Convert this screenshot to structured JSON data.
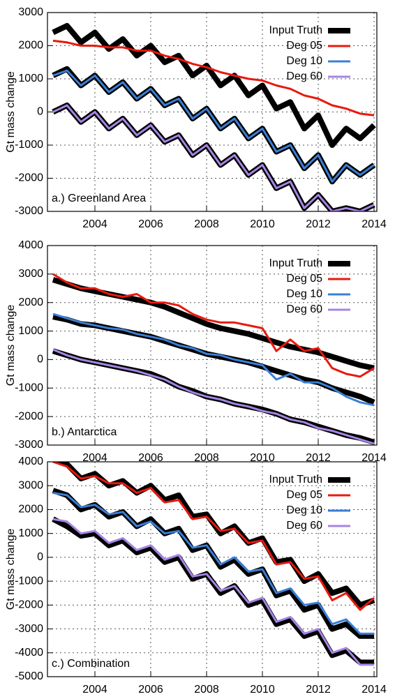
{
  "chart_data": [
    {
      "type": "line",
      "title": null,
      "annotation": "a.) Greenland Area",
      "ylabel": "Gt mass change",
      "legend": "top-right",
      "grid": true,
      "x": [
        2002.5,
        2003,
        2003.5,
        2004,
        2004.5,
        2005,
        2005.5,
        2006,
        2006.5,
        2007,
        2007.5,
        2008,
        2008.5,
        2009,
        2009.5,
        2010,
        2010.5,
        2011,
        2011.5,
        2012,
        2012.5,
        2013,
        2013.5,
        2014
      ],
      "xlim": [
        2002.3,
        2014.1
      ],
      "xticks": [
        2004,
        2006,
        2008,
        2010,
        2012,
        2014
      ],
      "ylim": [
        -3000,
        3000
      ],
      "yticks": [
        -3000,
        -2000,
        -1000,
        0,
        1000,
        2000,
        3000
      ],
      "series": [
        {
          "name": "Input Truth",
          "color": "#000000"
        },
        {
          "name": "Deg 05",
          "color": "#e8190e",
          "truth": [
            2400,
            2600,
            2100,
            2400,
            1900,
            2200,
            1700,
            2000,
            1500,
            1700,
            1100,
            1400,
            800,
            1100,
            500,
            800,
            100,
            300,
            -500,
            -100,
            -1000,
            -500,
            -800,
            -400
          ],
          "values": [
            2150,
            2100,
            2000,
            2000,
            1950,
            1950,
            1850,
            1850,
            1700,
            1600,
            1450,
            1350,
            1200,
            1100,
            1000,
            950,
            800,
            700,
            500,
            400,
            200,
            100,
            -50,
            -100
          ]
        },
        {
          "name": "Deg 10",
          "color": "#3a7fd5",
          "truth": [
            1100,
            1300,
            800,
            1100,
            600,
            900,
            400,
            700,
            200,
            400,
            -200,
            100,
            -500,
            -200,
            -800,
            -500,
            -1200,
            -1000,
            -1700,
            -1300,
            -2100,
            -1600,
            -1900,
            -1600
          ],
          "values": [
            1100,
            1250,
            800,
            1100,
            600,
            900,
            400,
            700,
            200,
            400,
            -200,
            100,
            -500,
            -200,
            -800,
            -500,
            -1200,
            -1000,
            -1700,
            -1300,
            -2100,
            -1600,
            -1900,
            -1600
          ]
        },
        {
          "name": "Deg 60",
          "color": "#a585e4",
          "truth": [
            0,
            200,
            -300,
            0,
            -500,
            -200,
            -700,
            -400,
            -900,
            -700,
            -1300,
            -1000,
            -1600,
            -1300,
            -1900,
            -1600,
            -2300,
            -2100,
            -2900,
            -2500,
            -3000,
            -2900,
            -3000,
            -2800
          ],
          "values": [
            0,
            200,
            -300,
            0,
            -500,
            -200,
            -700,
            -400,
            -900,
            -700,
            -1300,
            -1000,
            -1600,
            -1300,
            -1900,
            -1600,
            -2300,
            -2100,
            -2900,
            -2500,
            -3000,
            -2900,
            -3000,
            -2800
          ]
        }
      ]
    },
    {
      "type": "line",
      "title": null,
      "annotation": "b.) Antarctica",
      "ylabel": "Gt mass change",
      "legend": "top-right",
      "grid": true,
      "x": [
        2002.5,
        2003,
        2003.5,
        2004,
        2004.5,
        2005,
        2005.5,
        2006,
        2006.5,
        2007,
        2007.5,
        2008,
        2008.5,
        2009,
        2009.5,
        2010,
        2010.5,
        2011,
        2011.5,
        2012,
        2012.5,
        2013,
        2013.5,
        2014
      ],
      "xlim": [
        2002.3,
        2014.1
      ],
      "xticks": [
        2004,
        2006,
        2008,
        2010,
        2012,
        2014
      ],
      "ylim": [
        -3000,
        4000
      ],
      "yticks": [
        -3000,
        -2000,
        -1000,
        0,
        1000,
        2000,
        3000,
        4000
      ],
      "series": [
        {
          "name": "Input Truth",
          "color": "#000000"
        },
        {
          "name": "Deg 05",
          "color": "#e8190e",
          "truth": [
            2800,
            2650,
            2500,
            2400,
            2300,
            2200,
            2100,
            2000,
            1850,
            1650,
            1450,
            1250,
            1100,
            1000,
            900,
            750,
            600,
            450,
            350,
            250,
            100,
            -50,
            -200,
            -300
          ],
          "values": [
            3000,
            2700,
            2500,
            2500,
            2300,
            2200,
            2300,
            2000,
            2000,
            1900,
            1600,
            1400,
            1300,
            1300,
            1200,
            1100,
            300,
            700,
            300,
            400,
            -300,
            -500,
            -600,
            -300
          ]
        },
        {
          "name": "Deg 10",
          "color": "#3a7fd5",
          "truth": [
            1500,
            1400,
            1250,
            1200,
            1100,
            1000,
            900,
            800,
            650,
            500,
            350,
            200,
            100,
            0,
            -100,
            -250,
            -400,
            -550,
            -700,
            -800,
            -1000,
            -1150,
            -1300,
            -1500
          ],
          "values": [
            1600,
            1450,
            1300,
            1200,
            1100,
            1050,
            900,
            800,
            700,
            500,
            400,
            200,
            150,
            0,
            -100,
            -200,
            -700,
            -500,
            -800,
            -800,
            -1000,
            -1300,
            -1500,
            -1600
          ]
        },
        {
          "name": "Deg 60",
          "color": "#a585e4",
          "truth": [
            300,
            150,
            0,
            -100,
            -200,
            -300,
            -400,
            -500,
            -700,
            -950,
            -1100,
            -1300,
            -1400,
            -1550,
            -1650,
            -1750,
            -1900,
            -2100,
            -2200,
            -2350,
            -2500,
            -2650,
            -2750,
            -2900
          ],
          "values": [
            350,
            150,
            0,
            -100,
            -200,
            -300,
            -400,
            -550,
            -700,
            -950,
            -1150,
            -1300,
            -1400,
            -1550,
            -1650,
            -1800,
            -1900,
            -2100,
            -2200,
            -2400,
            -2500,
            -2650,
            -2800,
            -2950
          ]
        }
      ]
    },
    {
      "type": "line",
      "title": null,
      "annotation": "c.) Combination",
      "ylabel": "Gt mass change",
      "legend": "top-right",
      "grid": true,
      "x": [
        2002.5,
        2003,
        2003.5,
        2004,
        2004.5,
        2005,
        2005.5,
        2006,
        2006.5,
        2007,
        2007.5,
        2008,
        2008.5,
        2009,
        2009.5,
        2010,
        2010.5,
        2011,
        2011.5,
        2012,
        2012.5,
        2013,
        2013.5,
        2014
      ],
      "xlim": [
        2002.3,
        2014.1
      ],
      "xticks": [
        2004,
        2006,
        2008,
        2010,
        2012,
        2014
      ],
      "ylim": [
        -5000,
        4000
      ],
      "yticks": [
        -5000,
        -4000,
        -3000,
        -2000,
        -1000,
        0,
        1000,
        2000,
        3000,
        4000
      ],
      "series": [
        {
          "name": "Input Truth",
          "color": "#000000"
        },
        {
          "name": "Deg 05",
          "color": "#e8190e",
          "truth": [
            4100,
            3900,
            3300,
            3500,
            3000,
            3200,
            2700,
            3000,
            2400,
            2600,
            1700,
            1800,
            1000,
            1300,
            600,
            800,
            -200,
            -100,
            -1000,
            -700,
            -1500,
            -1300,
            -2000,
            -1800
          ],
          "values": [
            4000,
            3800,
            3300,
            3400,
            3100,
            3100,
            2700,
            2900,
            2300,
            2400,
            1600,
            1700,
            1100,
            1200,
            600,
            700,
            -300,
            -200,
            -900,
            -800,
            -1800,
            -1500,
            -2200,
            -1700
          ]
        },
        {
          "name": "Deg 10",
          "color": "#3a7fd5",
          "truth": [
            2800,
            2600,
            2000,
            2200,
            1700,
            1900,
            1300,
            1600,
            1000,
            1200,
            300,
            500,
            -400,
            -100,
            -700,
            -500,
            -1600,
            -1400,
            -2200,
            -2000,
            -3000,
            -2800,
            -3300,
            -3300
          ],
          "values": [
            2700,
            2600,
            2100,
            2200,
            1800,
            1900,
            1300,
            1500,
            1000,
            1100,
            400,
            500,
            -300,
            0,
            -600,
            -500,
            -1500,
            -1300,
            -2000,
            -1900,
            -2800,
            -2600,
            -3200,
            -3200
          ]
        },
        {
          "name": "Deg 60",
          "color": "#a585e4",
          "truth": [
            1600,
            1300,
            900,
            1000,
            500,
            700,
            200,
            400,
            -200,
            0,
            -900,
            -700,
            -1500,
            -1200,
            -2000,
            -1800,
            -2800,
            -2600,
            -3300,
            -3100,
            -4100,
            -3900,
            -4400,
            -4400
          ],
          "values": [
            1600,
            1500,
            1000,
            1100,
            600,
            800,
            300,
            500,
            -100,
            100,
            -800,
            -700,
            -1400,
            -1200,
            -1900,
            -1700,
            -2700,
            -2500,
            -3200,
            -3000,
            -4000,
            -3800,
            -4500,
            -4500
          ]
        }
      ]
    }
  ]
}
